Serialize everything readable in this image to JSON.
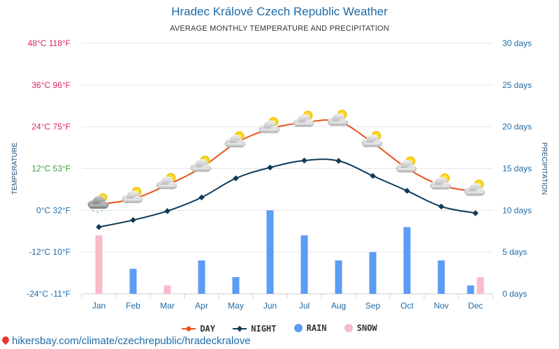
{
  "header": {
    "title": "Hradec Králové Czech Republic Weather",
    "subtitle": "AVERAGE MONTHLY TEMPERATURE AND PRECIPITATION"
  },
  "legend": {
    "day": "DAY",
    "night": "NIGHT",
    "rain": "RAIN",
    "snow": "SNOW"
  },
  "watermark": "hikersbay.com/climate/czechrepublic/hradeckralove",
  "colors": {
    "title": "#1f6aa5",
    "day": "#e8541b",
    "night": "#0e3a57",
    "rain": "#5b9cf5",
    "snow": "#f8bbc9",
    "left_hot": "#e0245e",
    "left_mild": "#3a9d3a",
    "left_cold": "#1f6aa5",
    "right_axis": "#1f6aa5",
    "grid": "#e6e6e6"
  },
  "chart_data": {
    "type": "line",
    "categories": [
      "Jan",
      "Feb",
      "Mar",
      "Apr",
      "May",
      "Jun",
      "Jul",
      "Aug",
      "Sep",
      "Oct",
      "Nov",
      "Dec"
    ],
    "series": [
      {
        "name": "DAY",
        "axis": "temperature",
        "values": [
          1.7,
          3.3,
          7.3,
          12.3,
          19.3,
          23.4,
          25.2,
          25.5,
          19.4,
          12.1,
          7.2,
          5.4
        ]
      },
      {
        "name": "NIGHT",
        "axis": "temperature",
        "values": [
          -4.8,
          -2.8,
          -0.2,
          3.7,
          9.2,
          12.3,
          14.3,
          14.2,
          9.9,
          5.6,
          1.1,
          -0.8
        ]
      },
      {
        "name": "RAIN",
        "axis": "precipitation",
        "values": [
          0,
          3,
          0,
          4,
          2,
          10,
          7,
          4,
          5,
          8,
          4,
          1
        ]
      },
      {
        "name": "SNOW",
        "axis": "precipitation",
        "values": [
          7,
          0,
          1,
          0,
          0,
          0,
          0,
          0,
          0,
          0,
          0,
          2
        ]
      }
    ],
    "weather_icons": [
      "cloud-snow",
      "sun-cloud",
      "sun-cloud",
      "sun-cloud",
      "sun-cloud",
      "sun-cloud",
      "sun-cloud",
      "sun-cloud",
      "sun-cloud",
      "sun-cloud",
      "sun-cloud",
      "sun-cloud"
    ],
    "left_axis": {
      "label": "TEMPERATURE",
      "ylim": [
        -24,
        48
      ],
      "ticks": [
        {
          "value": 48,
          "label": "48°C 118°F",
          "color_key": "left_hot"
        },
        {
          "value": 36,
          "label": "36°C 96°F",
          "color_key": "left_hot"
        },
        {
          "value": 24,
          "label": "24°C 75°F",
          "color_key": "left_hot"
        },
        {
          "value": 12,
          "label": "12°C 53°F",
          "color_key": "left_mild"
        },
        {
          "value": 0,
          "label": "0°C 32°F",
          "color_key": "left_cold"
        },
        {
          "value": -12,
          "label": "-12°C 10°F",
          "color_key": "left_cold"
        },
        {
          "value": -24,
          "label": "-24°C -11°F",
          "color_key": "left_cold"
        }
      ]
    },
    "right_axis": {
      "label": "PRECIPITATION",
      "ylim": [
        0,
        30
      ],
      "ticks": [
        {
          "value": 30,
          "label": "30 days"
        },
        {
          "value": 25,
          "label": "25 days"
        },
        {
          "value": 20,
          "label": "20 days"
        },
        {
          "value": 15,
          "label": "15 days"
        },
        {
          "value": 10,
          "label": "10 days"
        },
        {
          "value": 5,
          "label": "5 days"
        },
        {
          "value": 0,
          "label": "0 days"
        }
      ]
    },
    "grid": true,
    "legend_position": "bottom-center"
  }
}
